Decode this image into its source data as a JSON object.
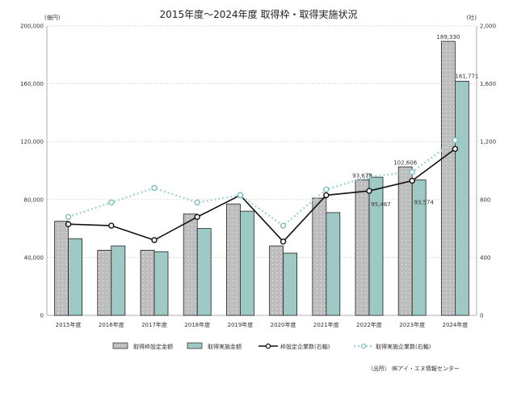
{
  "chart_data": {
    "type": "bar",
    "title": "2015年度～2024年度 取得枠・取得実施状況",
    "left_axis_unit": "(億円)",
    "right_axis_unit": "(社)",
    "categories": [
      "2015年度",
      "2016年度",
      "2017年度",
      "2018年度",
      "2019年度",
      "2020年度",
      "2021年度",
      "2022年度",
      "2023年度",
      "2024年度"
    ],
    "ylim_left": [
      0,
      200000
    ],
    "yticks_left": [
      "0",
      "40,000",
      "80,000",
      "120,000",
      "160,000",
      "200,000"
    ],
    "ylim_right": [
      0,
      2000
    ],
    "yticks_right": [
      "0",
      "400",
      "800",
      "1,200",
      "1,600",
      "2,000"
    ],
    "grid": true,
    "legend_position": "bottom",
    "series": [
      {
        "name": "取得枠設定金額",
        "kind": "bar",
        "axis": "left",
        "color": "#bdbdbd",
        "values": [
          65000,
          45000,
          45000,
          70000,
          77000,
          48000,
          81000,
          93678,
          102606,
          189330
        ]
      },
      {
        "name": "取得実施金額",
        "kind": "bar",
        "axis": "left",
        "color": "#9fc9c4",
        "values": [
          53000,
          48000,
          44000,
          60000,
          72000,
          43000,
          71000,
          95467,
          93574,
          161771
        ]
      },
      {
        "name": "枠設定企業数(右軸)",
        "kind": "line",
        "axis": "right",
        "color": "#111111",
        "values": [
          630,
          620,
          520,
          680,
          830,
          510,
          830,
          860,
          930,
          1150
        ]
      },
      {
        "name": "取得実施企業数(右軸)",
        "kind": "line-dotted",
        "axis": "right",
        "color": "#a7d4d3",
        "values": [
          680,
          780,
          880,
          780,
          830,
          620,
          870,
          960,
          990,
          1210
        ]
      }
    ],
    "data_labels": [
      {
        "series": 0,
        "index": 7,
        "text": "93,678"
      },
      {
        "series": 1,
        "index": 7,
        "text": "95,467"
      },
      {
        "series": 0,
        "index": 8,
        "text": "102,606"
      },
      {
        "series": 1,
        "index": 8,
        "text": "93,574"
      },
      {
        "series": 0,
        "index": 9,
        "text": "189,330"
      },
      {
        "series": 1,
        "index": 9,
        "text": "161,771"
      }
    ]
  },
  "source": "（出所） ㈱アイ・エヌ情報センター"
}
